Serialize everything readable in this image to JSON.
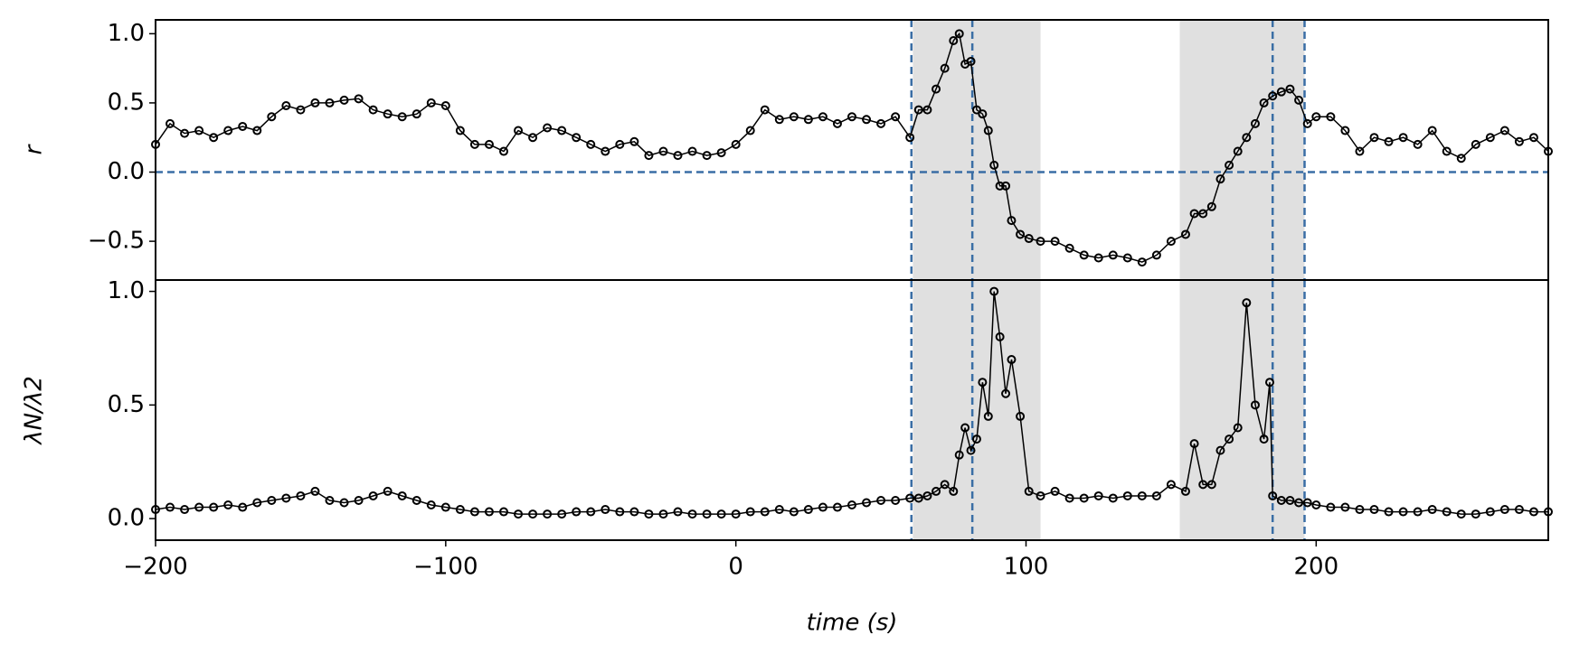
{
  "chart_data": [
    {
      "type": "line",
      "ylabel": "r",
      "x": [
        -200,
        -195,
        -190,
        -185,
        -180,
        -175,
        -170,
        -165,
        -160,
        -155,
        -150,
        -145,
        -140,
        -135,
        -130,
        -125,
        -120,
        -115,
        -110,
        -105,
        -100,
        -95,
        -90,
        -85,
        -80,
        -75,
        -70,
        -65,
        -60,
        -55,
        -50,
        -45,
        -40,
        -35,
        -30,
        -25,
        -20,
        -15,
        -10,
        -5,
        0,
        5,
        10,
        15,
        20,
        25,
        30,
        35,
        40,
        45,
        50,
        55,
        60,
        63,
        66,
        69,
        72,
        75,
        77,
        79,
        81,
        83,
        85,
        87,
        89,
        91,
        93,
        95,
        98,
        101,
        105,
        110,
        115,
        120,
        125,
        130,
        135,
        140,
        145,
        150,
        155,
        158,
        161,
        164,
        167,
        170,
        173,
        176,
        179,
        182,
        185,
        188,
        191,
        194,
        197,
        200,
        205,
        210,
        215,
        220,
        225,
        230,
        235,
        240,
        245,
        250,
        255,
        260,
        265,
        270,
        275,
        280
      ],
      "series": [
        {
          "color": "#000000",
          "values": [
            0.2,
            0.35,
            0.28,
            0.3,
            0.25,
            0.3,
            0.33,
            0.3,
            0.4,
            0.48,
            0.45,
            0.5,
            0.5,
            0.52,
            0.53,
            0.45,
            0.42,
            0.4,
            0.42,
            0.5,
            0.48,
            0.3,
            0.2,
            0.2,
            0.15,
            0.3,
            0.25,
            0.32,
            0.3,
            0.25,
            0.2,
            0.15,
            0.2,
            0.22,
            0.12,
            0.15,
            0.12,
            0.15,
            0.12,
            0.14,
            0.2,
            0.3,
            0.45,
            0.38,
            0.4,
            0.38,
            0.4,
            0.35,
            0.4,
            0.38,
            0.35,
            0.4,
            0.25,
            0.45,
            0.45,
            0.6,
            0.75,
            0.95,
            1.0,
            0.78,
            0.8,
            0.45,
            0.42,
            0.3,
            0.05,
            -0.1,
            -0.1,
            -0.35,
            -0.45,
            -0.48,
            -0.5,
            -0.5,
            -0.55,
            -0.6,
            -0.62,
            -0.6,
            -0.62,
            -0.65,
            -0.6,
            -0.5,
            -0.45,
            -0.3,
            -0.3,
            -0.25,
            -0.05,
            0.05,
            0.15,
            0.25,
            0.35,
            0.5,
            0.55,
            0.58,
            0.6,
            0.52,
            0.35,
            0.4,
            0.4,
            0.3,
            0.15,
            0.25,
            0.22,
            0.25,
            0.2,
            0.3,
            0.15,
            0.1,
            0.2,
            0.25,
            0.3,
            0.22,
            0.25,
            0.15
          ]
        }
      ],
      "xlim": [
        -200,
        280
      ],
      "ylim": [
        -0.78,
        1.1
      ],
      "yticks": [
        {
          "value": -0.5,
          "label": "−0.5"
        },
        {
          "value": 0,
          "label": "0.0"
        },
        0.5,
        {
          "value": 1,
          "label": "1.0"
        }
      ],
      "shaded_spans": [
        [
          61,
          105
        ],
        [
          153,
          196
        ]
      ],
      "vlines": [
        60.5,
        81.5,
        185,
        196
      ],
      "hlines": [
        0
      ],
      "line_color": "#3a6ea5",
      "shade_color": "#e0e0e0"
    },
    {
      "type": "line",
      "ylabel": "λN/λ2",
      "xlabel": "time (s)",
      "x": [
        -200,
        -195,
        -190,
        -185,
        -180,
        -175,
        -170,
        -165,
        -160,
        -155,
        -150,
        -145,
        -140,
        -135,
        -130,
        -125,
        -120,
        -115,
        -110,
        -105,
        -100,
        -95,
        -90,
        -85,
        -80,
        -75,
        -70,
        -65,
        -60,
        -55,
        -50,
        -45,
        -40,
        -35,
        -30,
        -25,
        -20,
        -15,
        -10,
        -5,
        0,
        5,
        10,
        15,
        20,
        25,
        30,
        35,
        40,
        45,
        50,
        55,
        60,
        63,
        66,
        69,
        72,
        75,
        77,
        79,
        81,
        83,
        85,
        87,
        89,
        91,
        93,
        95,
        98,
        101,
        105,
        110,
        115,
        120,
        125,
        130,
        135,
        140,
        145,
        150,
        155,
        158,
        161,
        164,
        167,
        170,
        173,
        176,
        179,
        182,
        184,
        185,
        188,
        191,
        194,
        197,
        200,
        205,
        210,
        215,
        220,
        225,
        230,
        235,
        240,
        245,
        250,
        255,
        260,
        265,
        270,
        275,
        280
      ],
      "series": [
        {
          "color": "#000000",
          "values": [
            0.04,
            0.05,
            0.04,
            0.05,
            0.05,
            0.06,
            0.05,
            0.07,
            0.08,
            0.09,
            0.1,
            0.12,
            0.08,
            0.07,
            0.08,
            0.1,
            0.12,
            0.1,
            0.08,
            0.06,
            0.05,
            0.04,
            0.03,
            0.03,
            0.03,
            0.02,
            0.02,
            0.02,
            0.02,
            0.03,
            0.03,
            0.04,
            0.03,
            0.03,
            0.02,
            0.02,
            0.03,
            0.02,
            0.02,
            0.02,
            0.02,
            0.03,
            0.03,
            0.04,
            0.03,
            0.04,
            0.05,
            0.05,
            0.06,
            0.07,
            0.08,
            0.08,
            0.09,
            0.09,
            0.1,
            0.12,
            0.15,
            0.12,
            0.28,
            0.4,
            0.3,
            0.35,
            0.6,
            0.45,
            1.0,
            0.8,
            0.55,
            0.7,
            0.45,
            0.12,
            0.1,
            0.12,
            0.09,
            0.09,
            0.1,
            0.09,
            0.1,
            0.1,
            0.1,
            0.15,
            0.12,
            0.33,
            0.15,
            0.15,
            0.3,
            0.35,
            0.4,
            0.95,
            0.5,
            0.35,
            0.6,
            0.1,
            0.08,
            0.08,
            0.07,
            0.07,
            0.06,
            0.05,
            0.05,
            0.04,
            0.04,
            0.03,
            0.03,
            0.03,
            0.04,
            0.03,
            0.02,
            0.02,
            0.03,
            0.04,
            0.04,
            0.03,
            0.03
          ]
        }
      ],
      "xlim": [
        -200,
        280
      ],
      "ylim": [
        -0.095,
        1.05
      ],
      "xticks": [
        {
          "value": -200,
          "label": "−200"
        },
        {
          "value": -100,
          "label": "−100"
        },
        0,
        100,
        200
      ],
      "yticks": [
        {
          "value": 0,
          "label": "0.0"
        },
        0.5,
        {
          "value": 1,
          "label": "1.0"
        }
      ],
      "shaded_spans": [
        [
          61,
          105
        ],
        [
          153,
          196
        ]
      ],
      "vlines": [
        60.5,
        81.5,
        185,
        196
      ],
      "line_color": "#3a6ea5",
      "shade_color": "#e0e0e0"
    }
  ]
}
